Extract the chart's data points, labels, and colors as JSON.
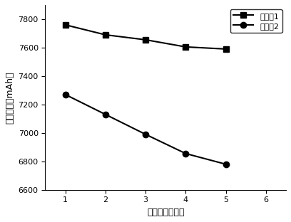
{
  "x": [
    1,
    2,
    3,
    4,
    5
  ],
  "series1_y": [
    7760,
    7690,
    7655,
    7605,
    7590
  ],
  "series2_y": [
    7270,
    7130,
    6990,
    6855,
    6780
  ],
  "series1_label": "电池组1",
  "series2_label": "电池组2",
  "xlabel": "循环次数（次）",
  "ylabel": "放电容量（mAh）",
  "xlim": [
    0.5,
    6.5
  ],
  "ylim": [
    6600,
    7900
  ],
  "yticks": [
    6600,
    6800,
    7000,
    7200,
    7400,
    7600,
    7800
  ],
  "xticks": [
    1,
    2,
    3,
    4,
    5,
    6
  ],
  "line_color": "#000000",
  "marker1": "s",
  "marker2": "o",
  "markersize": 6,
  "linewidth": 1.5,
  "background_color": "#ffffff",
  "legend_loc": "upper right",
  "axis_fontsize": 9,
  "tick_fontsize": 8,
  "legend_fontsize": 8
}
